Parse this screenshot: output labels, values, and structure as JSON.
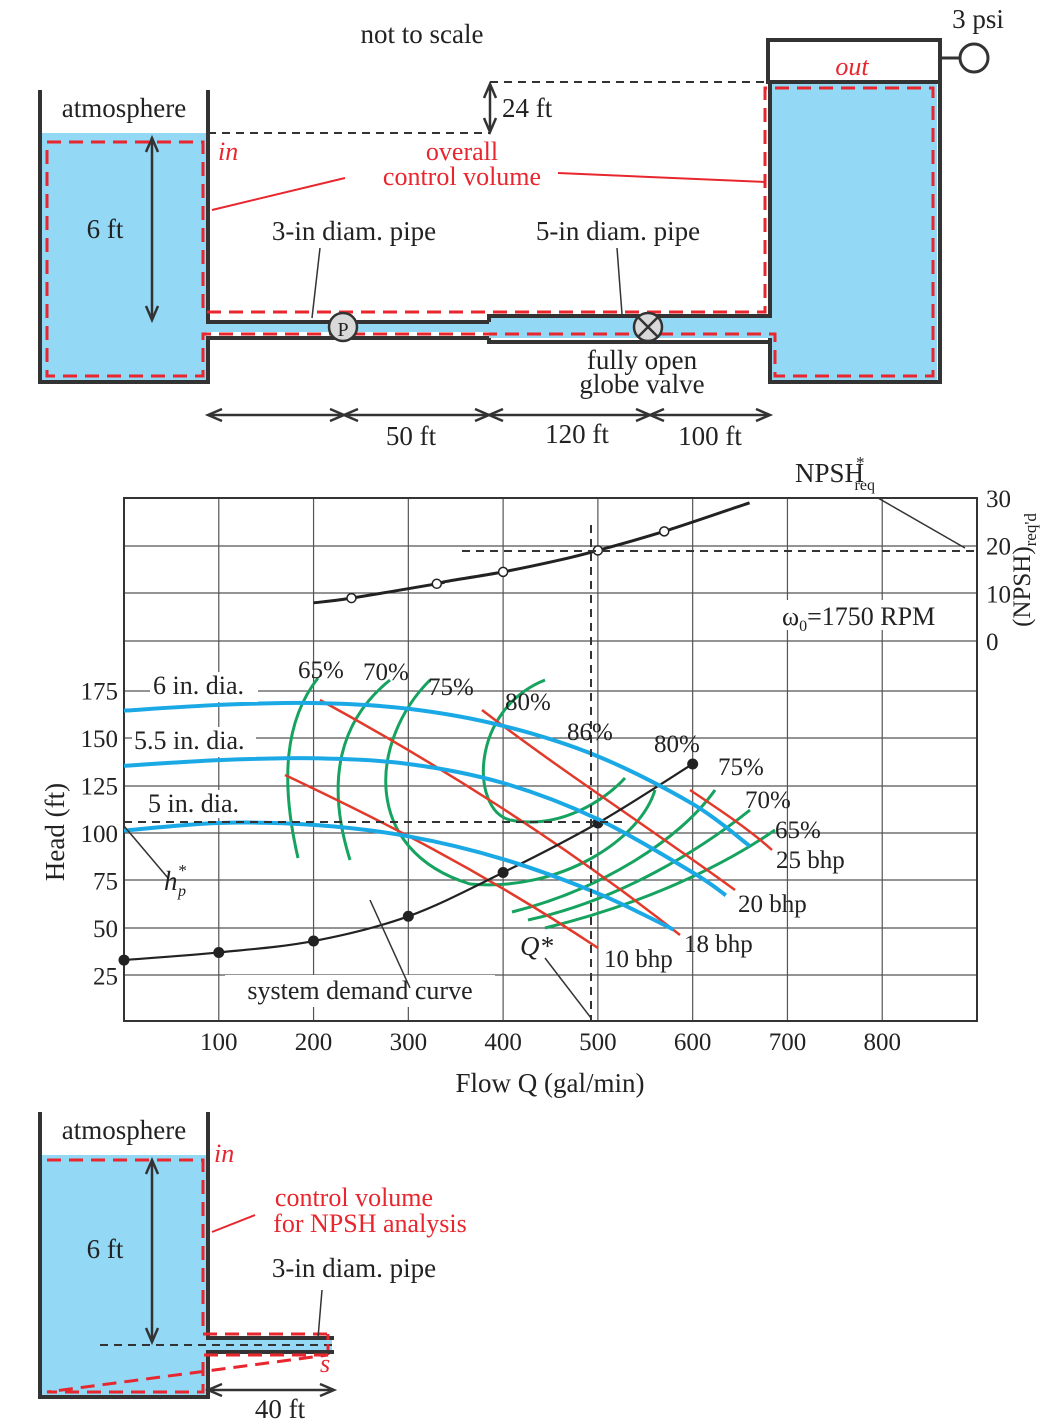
{
  "colors": {
    "water": "#93d8f5",
    "cv_red": "#e8262e",
    "efficiency_green": "#16a35f",
    "diameter_blue": "#1ba9e6",
    "bhp_red": "#e23a2a",
    "ink": "#222222"
  },
  "top": {
    "note": "not to scale",
    "atmosphere": "atmosphere",
    "in": "in",
    "out": "out",
    "pressure": "3 psi",
    "height_24": "24 ft",
    "depth_6": "6 ft",
    "cv_line1": "overall",
    "cv_line2": "control volume",
    "pipe3": "3-in diam. pipe",
    "pipe5": "5-in diam. pipe",
    "pump": "P",
    "valve_line1": "fully open",
    "valve_line2": "globe valve",
    "len50": "50 ft",
    "len120": "120 ft",
    "len100": "100 ft"
  },
  "chart_labels": {
    "npsh_star": "NPSH",
    "npsh_star_sup": "*",
    "npsh_star_sub": "req",
    "omega_main": "ω",
    "omega_sub": "0",
    "omega_rest": "=1750 RPM",
    "right_axis_main": "(NPSH)",
    "right_axis_sub": "req'd",
    "hp_main": "h",
    "hp_sub": "p",
    "hp_sup": "*",
    "q_star": "Q*",
    "system_curve": "system demand curve",
    "dia6": "6 in. dia.",
    "dia55": "5.5 in. dia.",
    "dia5": "5  in. dia.",
    "eff_labels": [
      "65%",
      "70%",
      "75%",
      "80%",
      "86%",
      "80%",
      "75%",
      "70%",
      "65%"
    ],
    "bhp_labels": [
      "25 bhp",
      "20 bhp",
      "18 bhp",
      "10 bhp"
    ]
  },
  "chart_data": {
    "type": "line",
    "xlabel": "Flow Q (gal/min)",
    "ylabel": "Head (ft)",
    "y2label": "(NPSH)req'd",
    "xlim": [
      0,
      900
    ],
    "ylim": [
      0,
      275
    ],
    "x_ticks": [
      100,
      200,
      300,
      400,
      500,
      600,
      700,
      800
    ],
    "y_ticks": [
      25,
      50,
      75,
      100,
      125,
      150,
      175
    ],
    "y2_ticks": [
      0,
      10,
      20,
      30
    ],
    "y2_range": [
      0,
      30
    ],
    "operating_point": {
      "Q": 500,
      "head": 103,
      "npsh_req": 19
    },
    "series": [
      {
        "name": "system demand curve",
        "x": [
          0,
          100,
          200,
          300,
          400,
          500,
          600
        ],
        "y": [
          32,
          36,
          42,
          55,
          78,
          104,
          135
        ]
      },
      {
        "name": "6 in. dia.",
        "x": [
          0,
          100,
          200,
          300,
          400,
          500,
          600,
          660
        ],
        "y": [
          163,
          166,
          167,
          164,
          155,
          139,
          114,
          92
        ]
      },
      {
        "name": "5.5 in. dia.",
        "x": [
          0,
          100,
          200,
          300,
          400,
          500,
          600,
          635
        ],
        "y": [
          134,
          137,
          138,
          135,
          125,
          106,
          78,
          66
        ]
      },
      {
        "name": "5  in. dia.",
        "x": [
          0,
          100,
          200,
          300,
          400,
          500,
          580
        ],
        "y": [
          100,
          104,
          103,
          97,
          85,
          67,
          48
        ]
      },
      {
        "name": "NPSH",
        "x": [
          200,
          240,
          330,
          340,
          400,
          460,
          500,
          570,
          660
        ],
        "y": [
          8,
          9,
          12,
          12.5,
          14.5,
          17,
          19,
          23,
          29
        ]
      }
    ]
  }
}
